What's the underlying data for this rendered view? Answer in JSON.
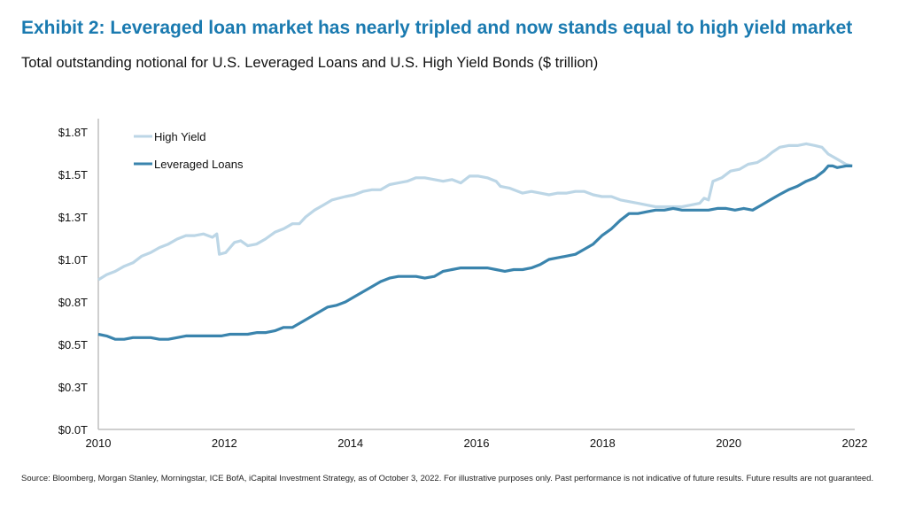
{
  "title": "Exhibit 2: Leveraged loan market has nearly tripled and now stands equal to high yield market",
  "subtitle": "Total outstanding notional for U.S. Leveraged Loans and U.S. High Yield Bonds ($ trillion)",
  "source": "Source: Bloomberg, Morgan Stanley, Morningstar, ICE BofA, iCapital Investment Strategy, as of October 3, 2022. For illustrative purposes only. Past performance is not indicative of future results. Future results are not guaranteed.",
  "chart_data": {
    "type": "line",
    "xlim": [
      2010,
      2022
    ],
    "ylim": [
      0,
      1.75
    ],
    "x_ticks": [
      2010,
      2012,
      2014,
      2016,
      2018,
      2020,
      2022
    ],
    "x_tick_labels": [
      "2010",
      "2012",
      "2014",
      "2016",
      "2018",
      "2020",
      "2022"
    ],
    "y_ticks": [
      0,
      0.25,
      0.5,
      0.75,
      1.0,
      1.25,
      1.5,
      1.75
    ],
    "y_tick_labels": [
      "$0.0T",
      "$0.3T",
      "$0.5T",
      "$0.8T",
      "$1.0T",
      "$1.3T",
      "$1.5T",
      "$1.8T"
    ],
    "grid": false,
    "legend_position": "top-left",
    "series": [
      {
        "name": "High Yield",
        "color": "#bcd6e6",
        "points": [
          [
            2010.0,
            0.88
          ],
          [
            2010.13,
            0.91
          ],
          [
            2010.27,
            0.93
          ],
          [
            2010.41,
            0.96
          ],
          [
            2010.55,
            0.98
          ],
          [
            2010.69,
            1.02
          ],
          [
            2010.83,
            1.04
          ],
          [
            2010.97,
            1.07
          ],
          [
            2011.11,
            1.09
          ],
          [
            2011.25,
            1.12
          ],
          [
            2011.39,
            1.14
          ],
          [
            2011.53,
            1.14
          ],
          [
            2011.67,
            1.15
          ],
          [
            2011.81,
            1.13
          ],
          [
            2011.88,
            1.15
          ],
          [
            2011.92,
            1.03
          ],
          [
            2012.02,
            1.04
          ],
          [
            2012.16,
            1.1
          ],
          [
            2012.26,
            1.11
          ],
          [
            2012.37,
            1.08
          ],
          [
            2012.51,
            1.09
          ],
          [
            2012.65,
            1.12
          ],
          [
            2012.8,
            1.16
          ],
          [
            2012.94,
            1.18
          ],
          [
            2013.08,
            1.21
          ],
          [
            2013.19,
            1.21
          ],
          [
            2013.29,
            1.25
          ],
          [
            2013.43,
            1.29
          ],
          [
            2013.57,
            1.32
          ],
          [
            2013.71,
            1.35
          ],
          [
            2013.92,
            1.37
          ],
          [
            2014.06,
            1.38
          ],
          [
            2014.2,
            1.4
          ],
          [
            2014.34,
            1.41
          ],
          [
            2014.48,
            1.41
          ],
          [
            2014.62,
            1.44
          ],
          [
            2014.76,
            1.45
          ],
          [
            2014.9,
            1.46
          ],
          [
            2015.04,
            1.48
          ],
          [
            2015.18,
            1.48
          ],
          [
            2015.33,
            1.47
          ],
          [
            2015.47,
            1.46
          ],
          [
            2015.61,
            1.47
          ],
          [
            2015.75,
            1.45
          ],
          [
            2015.89,
            1.49
          ],
          [
            2016.03,
            1.49
          ],
          [
            2016.17,
            1.48
          ],
          [
            2016.31,
            1.46
          ],
          [
            2016.38,
            1.43
          ],
          [
            2016.52,
            1.42
          ],
          [
            2016.66,
            1.4
          ],
          [
            2016.73,
            1.39
          ],
          [
            2016.87,
            1.4
          ],
          [
            2017.01,
            1.39
          ],
          [
            2017.15,
            1.38
          ],
          [
            2017.29,
            1.39
          ],
          [
            2017.43,
            1.39
          ],
          [
            2017.57,
            1.4
          ],
          [
            2017.71,
            1.4
          ],
          [
            2017.85,
            1.38
          ],
          [
            2017.99,
            1.37
          ],
          [
            2018.14,
            1.37
          ],
          [
            2018.28,
            1.35
          ],
          [
            2018.42,
            1.34
          ],
          [
            2018.56,
            1.33
          ],
          [
            2018.7,
            1.32
          ],
          [
            2018.84,
            1.31
          ],
          [
            2018.98,
            1.31
          ],
          [
            2019.12,
            1.31
          ],
          [
            2019.26,
            1.31
          ],
          [
            2019.4,
            1.32
          ],
          [
            2019.54,
            1.33
          ],
          [
            2019.61,
            1.36
          ],
          [
            2019.68,
            1.35
          ],
          [
            2019.75,
            1.46
          ],
          [
            2019.89,
            1.48
          ],
          [
            2020.03,
            1.52
          ],
          [
            2020.17,
            1.53
          ],
          [
            2020.31,
            1.56
          ],
          [
            2020.45,
            1.57
          ],
          [
            2020.59,
            1.6
          ],
          [
            2020.69,
            1.63
          ],
          [
            2020.81,
            1.66
          ],
          [
            2020.95,
            1.67
          ],
          [
            2021.09,
            1.67
          ],
          [
            2021.23,
            1.68
          ],
          [
            2021.37,
            1.67
          ],
          [
            2021.48,
            1.66
          ],
          [
            2021.58,
            1.62
          ],
          [
            2021.72,
            1.59
          ],
          [
            2021.86,
            1.56
          ],
          [
            2021.96,
            1.55
          ]
        ]
      },
      {
        "name": "Leveraged Loans",
        "color": "#3a84ad",
        "points": [
          [
            2010.0,
            0.56
          ],
          [
            2010.13,
            0.55
          ],
          [
            2010.27,
            0.53
          ],
          [
            2010.41,
            0.53
          ],
          [
            2010.55,
            0.54
          ],
          [
            2010.69,
            0.54
          ],
          [
            2010.83,
            0.54
          ],
          [
            2010.97,
            0.53
          ],
          [
            2011.11,
            0.53
          ],
          [
            2011.25,
            0.54
          ],
          [
            2011.39,
            0.55
          ],
          [
            2011.53,
            0.55
          ],
          [
            2011.67,
            0.55
          ],
          [
            2011.81,
            0.55
          ],
          [
            2011.95,
            0.55
          ],
          [
            2012.09,
            0.56
          ],
          [
            2012.23,
            0.56
          ],
          [
            2012.37,
            0.56
          ],
          [
            2012.52,
            0.57
          ],
          [
            2012.66,
            0.57
          ],
          [
            2012.8,
            0.58
          ],
          [
            2012.94,
            0.6
          ],
          [
            2013.08,
            0.6
          ],
          [
            2013.22,
            0.63
          ],
          [
            2013.36,
            0.66
          ],
          [
            2013.5,
            0.69
          ],
          [
            2013.64,
            0.72
          ],
          [
            2013.78,
            0.73
          ],
          [
            2013.92,
            0.75
          ],
          [
            2014.06,
            0.78
          ],
          [
            2014.2,
            0.81
          ],
          [
            2014.34,
            0.84
          ],
          [
            2014.48,
            0.87
          ],
          [
            2014.62,
            0.89
          ],
          [
            2014.76,
            0.9
          ],
          [
            2014.9,
            0.9
          ],
          [
            2015.04,
            0.9
          ],
          [
            2015.18,
            0.89
          ],
          [
            2015.33,
            0.9
          ],
          [
            2015.47,
            0.93
          ],
          [
            2015.61,
            0.94
          ],
          [
            2015.75,
            0.95
          ],
          [
            2015.89,
            0.95
          ],
          [
            2016.03,
            0.95
          ],
          [
            2016.17,
            0.95
          ],
          [
            2016.31,
            0.94
          ],
          [
            2016.45,
            0.93
          ],
          [
            2016.59,
            0.94
          ],
          [
            2016.73,
            0.94
          ],
          [
            2016.87,
            0.95
          ],
          [
            2017.01,
            0.97
          ],
          [
            2017.15,
            1.0
          ],
          [
            2017.29,
            1.01
          ],
          [
            2017.43,
            1.02
          ],
          [
            2017.57,
            1.03
          ],
          [
            2017.71,
            1.06
          ],
          [
            2017.85,
            1.09
          ],
          [
            2017.99,
            1.14
          ],
          [
            2018.14,
            1.18
          ],
          [
            2018.28,
            1.23
          ],
          [
            2018.42,
            1.27
          ],
          [
            2018.56,
            1.27
          ],
          [
            2018.7,
            1.28
          ],
          [
            2018.84,
            1.29
          ],
          [
            2018.98,
            1.29
          ],
          [
            2019.12,
            1.3
          ],
          [
            2019.26,
            1.29
          ],
          [
            2019.4,
            1.29
          ],
          [
            2019.54,
            1.29
          ],
          [
            2019.68,
            1.29
          ],
          [
            2019.82,
            1.3
          ],
          [
            2019.96,
            1.3
          ],
          [
            2020.1,
            1.29
          ],
          [
            2020.24,
            1.3
          ],
          [
            2020.38,
            1.29
          ],
          [
            2020.52,
            1.32
          ],
          [
            2020.66,
            1.35
          ],
          [
            2020.8,
            1.38
          ],
          [
            2020.95,
            1.41
          ],
          [
            2021.09,
            1.43
          ],
          [
            2021.23,
            1.46
          ],
          [
            2021.37,
            1.48
          ],
          [
            2021.51,
            1.52
          ],
          [
            2021.58,
            1.55
          ],
          [
            2021.65,
            1.55
          ],
          [
            2021.72,
            1.54
          ],
          [
            2021.86,
            1.55
          ],
          [
            2021.96,
            1.55
          ]
        ]
      }
    ]
  }
}
